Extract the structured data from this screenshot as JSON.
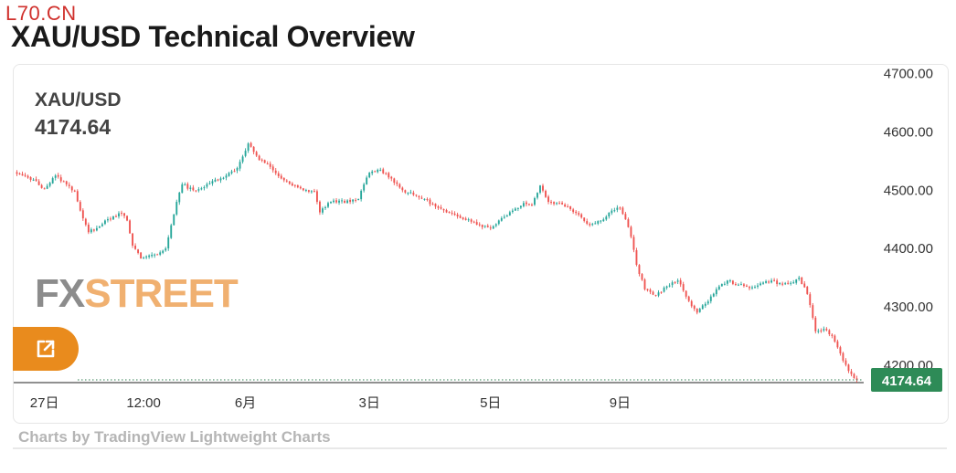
{
  "watermark": "L70.CN",
  "page_title": "XAU/USD Technical Overview",
  "symbol": {
    "name": "XAU/USD",
    "price": "4174.64"
  },
  "brand": {
    "part1": "FX",
    "part2": "STREET"
  },
  "attribution": "Charts by TradingView Lightweight Charts",
  "icons": {
    "popout": "external-link-icon"
  },
  "colors": {
    "up": "#26a69a",
    "down": "#ef5350",
    "accent": "#e98b1d",
    "price_label": "#2e8b57"
  },
  "chart_data": {
    "type": "candlestick",
    "ylim": [
      4170,
      4715
    ],
    "y_ticks": [
      {
        "value": 4700,
        "label": "4700.00"
      },
      {
        "value": 4600,
        "label": "4600.00"
      },
      {
        "value": 4500,
        "label": "4500.00"
      },
      {
        "value": 4400,
        "label": "4400.00"
      },
      {
        "value": 4300,
        "label": "4300.00"
      },
      {
        "value": 4200,
        "label": "4200.00"
      }
    ],
    "x_ticks": [
      {
        "index": 10,
        "label": "27日"
      },
      {
        "index": 46,
        "label": "12:00"
      },
      {
        "index": 83,
        "label": "6月"
      },
      {
        "index": 128,
        "label": "3日"
      },
      {
        "index": 172,
        "label": "5日"
      },
      {
        "index": 219,
        "label": "9日"
      }
    ],
    "last_price": 4174.64,
    "last_price_label": "4174.64",
    "close_path": [
      [
        0,
        4528
      ],
      [
        6,
        4518
      ],
      [
        10,
        4502
      ],
      [
        14,
        4525
      ],
      [
        18,
        4510
      ],
      [
        21,
        4498
      ],
      [
        23,
        4465
      ],
      [
        26,
        4428
      ],
      [
        29,
        4435
      ],
      [
        32,
        4448
      ],
      [
        35,
        4455
      ],
      [
        38,
        4460
      ],
      [
        40,
        4448
      ],
      [
        42,
        4405
      ],
      [
        45,
        4383
      ],
      [
        48,
        4388
      ],
      [
        51,
        4390
      ],
      [
        54,
        4400
      ],
      [
        56,
        4440
      ],
      [
        58,
        4480
      ],
      [
        60,
        4510
      ],
      [
        64,
        4500
      ],
      [
        68,
        4505
      ],
      [
        72,
        4518
      ],
      [
        76,
        4525
      ],
      [
        80,
        4538
      ],
      [
        84,
        4580
      ],
      [
        88,
        4552
      ],
      [
        92,
        4540
      ],
      [
        96,
        4520
      ],
      [
        100,
        4508
      ],
      [
        104,
        4500
      ],
      [
        108,
        4498
      ],
      [
        110,
        4462
      ],
      [
        113,
        4478
      ],
      [
        117,
        4482
      ],
      [
        121,
        4480
      ],
      [
        124,
        4485
      ],
      [
        126,
        4510
      ],
      [
        128,
        4530
      ],
      [
        132,
        4535
      ],
      [
        136,
        4520
      ],
      [
        140,
        4500
      ],
      [
        144,
        4492
      ],
      [
        148,
        4485
      ],
      [
        152,
        4472
      ],
      [
        156,
        4462
      ],
      [
        160,
        4455
      ],
      [
        164,
        4450
      ],
      [
        168,
        4440
      ],
      [
        172,
        4435
      ],
      [
        176,
        4452
      ],
      [
        180,
        4465
      ],
      [
        184,
        4478
      ],
      [
        187,
        4475
      ],
      [
        190,
        4508
      ],
      [
        193,
        4480
      ],
      [
        196,
        4478
      ],
      [
        200,
        4472
      ],
      [
        204,
        4458
      ],
      [
        208,
        4440
      ],
      [
        212,
        4448
      ],
      [
        216,
        4465
      ],
      [
        219,
        4470
      ],
      [
        221,
        4450
      ],
      [
        223,
        4420
      ],
      [
        225,
        4372
      ],
      [
        228,
        4330
      ],
      [
        232,
        4320
      ],
      [
        236,
        4335
      ],
      [
        240,
        4345
      ],
      [
        244,
        4310
      ],
      [
        247,
        4290
      ],
      [
        250,
        4305
      ],
      [
        254,
        4330
      ],
      [
        258,
        4345
      ],
      [
        262,
        4338
      ],
      [
        266,
        4332
      ],
      [
        270,
        4340
      ],
      [
        274,
        4345
      ],
      [
        278,
        4338
      ],
      [
        282,
        4342
      ],
      [
        284,
        4350
      ],
      [
        287,
        4322
      ],
      [
        290,
        4258
      ],
      [
        293,
        4262
      ],
      [
        296,
        4250
      ],
      [
        299,
        4220
      ],
      [
        302,
        4190
      ],
      [
        305,
        4174.64
      ]
    ]
  }
}
